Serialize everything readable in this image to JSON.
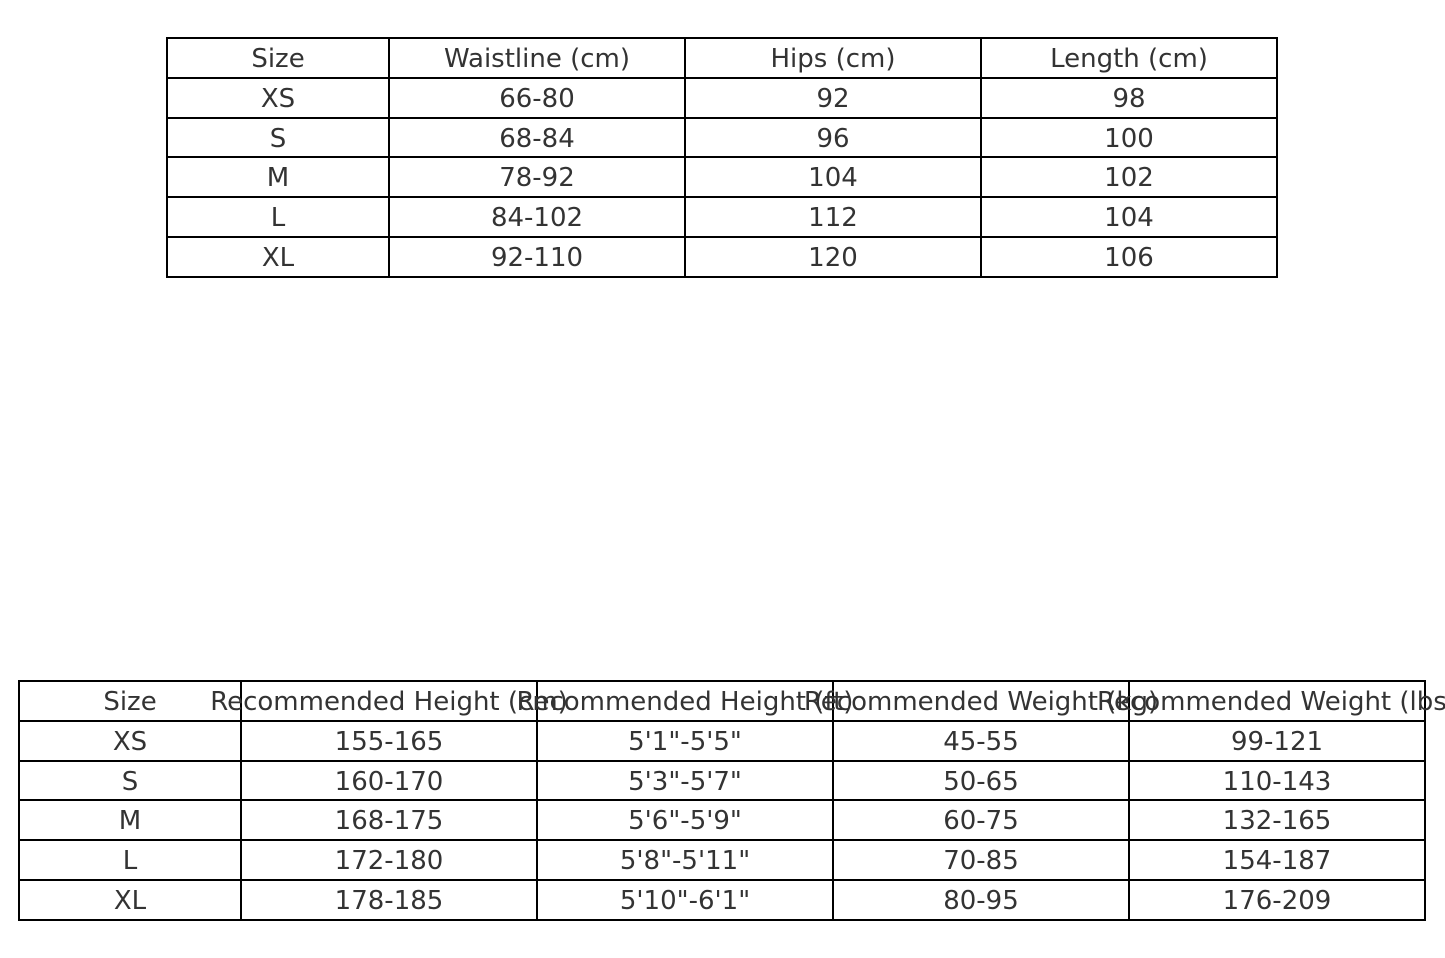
{
  "tables": [
    {
      "headers": [
        "Size",
        "Waistline (cm)",
        "Hips (cm)",
        "Length (cm)"
      ],
      "rows": [
        [
          "XS",
          "66-80",
          "92",
          "98"
        ],
        [
          "S",
          "68-84",
          "96",
          "100"
        ],
        [
          "M",
          "78-92",
          "104",
          "102"
        ],
        [
          "L",
          "84-102",
          "112",
          "104"
        ],
        [
          "XL",
          "92-110",
          "120",
          "106"
        ]
      ]
    },
    {
      "headers": [
        "Size",
        "Recommended Height (cm)",
        "Recommended Height (ft)",
        "Recommended Weight (kg)",
        "Recommended Weight (lbs)"
      ],
      "rows": [
        [
          "XS",
          "155-165",
          "5'1\"-5'5\"",
          "45-55",
          "99-121"
        ],
        [
          "S",
          "160-170",
          "5'3\"-5'7\"",
          "50-65",
          "110-143"
        ],
        [
          "M",
          "168-175",
          "5'6\"-5'9\"",
          "60-75",
          "132-165"
        ],
        [
          "L",
          "172-180",
          "5'8\"-5'11\"",
          "70-85",
          "154-187"
        ],
        [
          "XL",
          "178-185",
          "5'10\"-6'1\"",
          "80-95",
          "176-209"
        ]
      ]
    }
  ]
}
